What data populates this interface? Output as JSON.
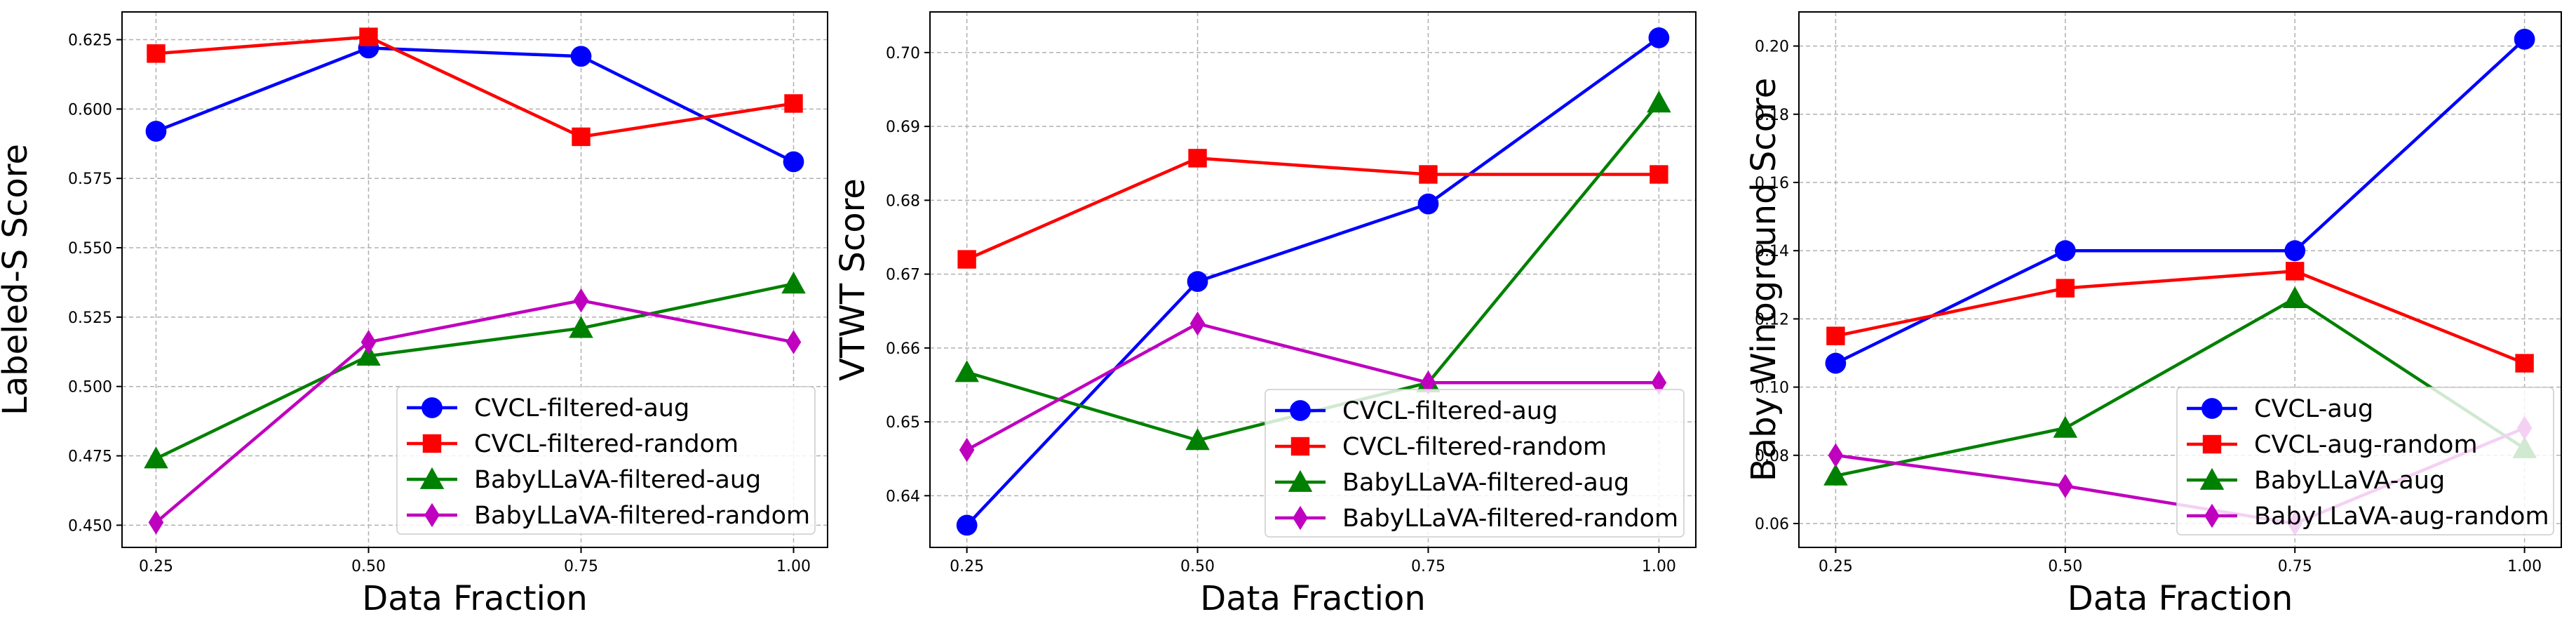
{
  "chart_data": [
    {
      "type": "line",
      "title": "",
      "xlabel": "Data Fraction",
      "ylabel": "Labeled-S Score",
      "x": [
        0.25,
        0.5,
        0.75,
        1.0
      ],
      "xticks": [
        "0.25",
        "0.50",
        "0.75",
        "1.00"
      ],
      "xlim": [
        0.21,
        1.04
      ],
      "ylim": [
        0.442,
        0.635
      ],
      "yticks": [
        "0.450",
        "0.475",
        "0.500",
        "0.525",
        "0.550",
        "0.575",
        "0.600",
        "0.625"
      ],
      "grid": true,
      "legend_position": "lower-right",
      "series": [
        {
          "name": "CVCL-filtered-aug",
          "color": "#0000ff",
          "marker": "circle",
          "values": [
            0.592,
            0.622,
            0.619,
            0.581
          ]
        },
        {
          "name": "CVCL-filtered-random",
          "color": "#ff0000",
          "marker": "square",
          "values": [
            0.62,
            0.626,
            0.59,
            0.602
          ]
        },
        {
          "name": "BabyLLaVA-filtered-aug",
          "color": "#008000",
          "marker": "triangle",
          "values": [
            0.474,
            0.511,
            0.521,
            0.537
          ]
        },
        {
          "name": "BabyLLaVA-filtered-random",
          "color": "#bf00bf",
          "marker": "diamond",
          "values": [
            0.451,
            0.516,
            0.531,
            0.516
          ]
        }
      ]
    },
    {
      "type": "line",
      "title": "",
      "xlabel": "Data Fraction",
      "ylabel": "VTWT Score",
      "x": [
        0.25,
        0.5,
        0.75,
        1.0
      ],
      "xticks": [
        "0.25",
        "0.50",
        "0.75",
        "1.00"
      ],
      "xlim": [
        0.21,
        1.04
      ],
      "ylim": [
        0.633,
        0.7055
      ],
      "yticks": [
        "0.64",
        "0.65",
        "0.66",
        "0.67",
        "0.68",
        "0.69",
        "0.70"
      ],
      "grid": true,
      "legend_position": "lower-right",
      "series": [
        {
          "name": "CVCL-filtered-aug",
          "color": "#0000ff",
          "marker": "circle",
          "values": [
            0.636,
            0.669,
            0.6795,
            0.702
          ]
        },
        {
          "name": "CVCL-filtered-random",
          "color": "#ff0000",
          "marker": "square",
          "values": [
            0.672,
            0.6857,
            0.6835,
            0.6835
          ]
        },
        {
          "name": "BabyLLaVA-filtered-aug",
          "color": "#008000",
          "marker": "triangle",
          "values": [
            0.6567,
            0.6475,
            0.6553,
            0.6932
          ]
        },
        {
          "name": "BabyLLaVA-filtered-random",
          "color": "#bf00bf",
          "marker": "diamond",
          "values": [
            0.6462,
            0.6633,
            0.6553,
            0.6553
          ]
        }
      ]
    },
    {
      "type": "line",
      "title": "",
      "xlabel": "Data Fraction",
      "ylabel": "Baby Winoground Score",
      "x": [
        0.25,
        0.5,
        0.75,
        1.0
      ],
      "xticks": [
        "0.25",
        "0.50",
        "0.75",
        "1.00"
      ],
      "xlim": [
        0.21,
        1.04
      ],
      "ylim": [
        0.053,
        0.21
      ],
      "yticks": [
        "0.06",
        "0.08",
        "0.10",
        "0.12",
        "0.14",
        "0.16",
        "0.18",
        "0.20"
      ],
      "grid": true,
      "legend_position": "lower-right",
      "series": [
        {
          "name": "CVCL-aug",
          "color": "#0000ff",
          "marker": "circle",
          "values": [
            0.107,
            0.14,
            0.14,
            0.202
          ]
        },
        {
          "name": "CVCL-aug-random",
          "color": "#ff0000",
          "marker": "square",
          "values": [
            0.115,
            0.129,
            0.134,
            0.107
          ]
        },
        {
          "name": "BabyLLaVA-aug",
          "color": "#008000",
          "marker": "triangle",
          "values": [
            0.074,
            0.088,
            0.126,
            0.082
          ]
        },
        {
          "name": "BabyLLaVA-aug-random",
          "color": "#bf00bf",
          "marker": "diamond",
          "values": [
            0.08,
            0.071,
            0.06,
            0.088
          ]
        }
      ]
    }
  ]
}
